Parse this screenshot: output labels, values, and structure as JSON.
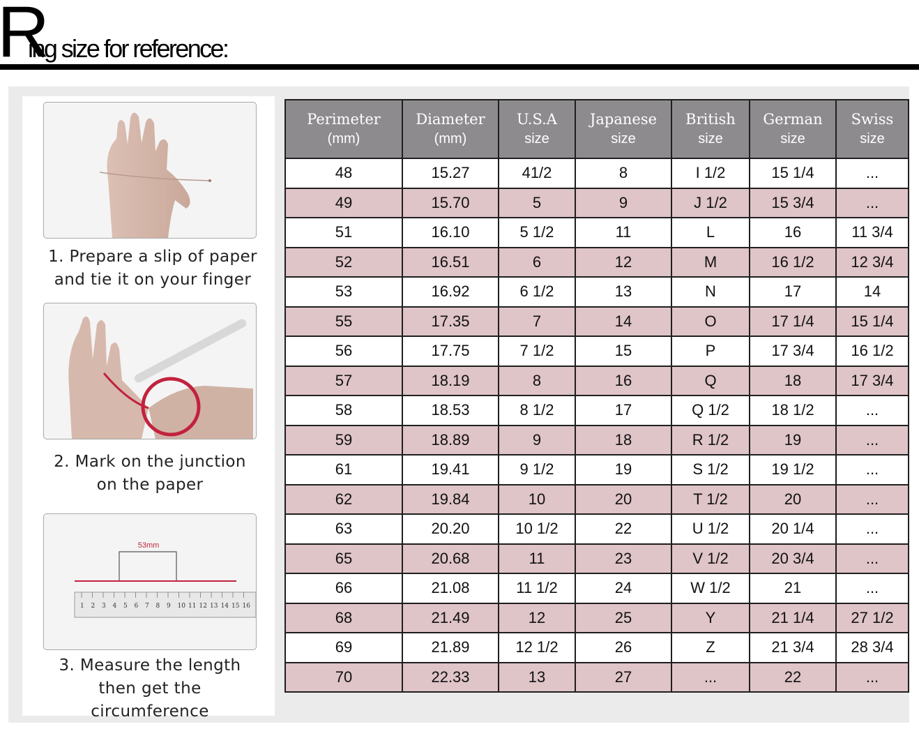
{
  "title": {
    "initial": "R",
    "rest": "ing size for reference:"
  },
  "steps": [
    {
      "text": "1. Prepare a slip of paper and tie it on your finger"
    },
    {
      "text": "2. Mark on the junction on the paper"
    },
    {
      "text": "3. Measure the length then get the circumference"
    }
  ],
  "ruler": {
    "measure_label": "53mm",
    "numbers": [
      "1",
      "2",
      "3",
      "4",
      "5",
      "6",
      "7",
      "8",
      "9",
      "10",
      "11",
      "12",
      "13",
      "14",
      "15",
      "16"
    ]
  },
  "colors": {
    "header_bg": "#8e8b8e",
    "pink_row": "#dfc4c8",
    "accent_red": "#c2223e"
  },
  "table": {
    "headers": [
      {
        "line1": "Perimeter",
        "line2": "(mm)"
      },
      {
        "line1": "Diameter",
        "line2": "(mm)"
      },
      {
        "line1": "U.S.A",
        "line2": "size"
      },
      {
        "line1": "Japanese",
        "line2": "size"
      },
      {
        "line1": "British",
        "line2": "size"
      },
      {
        "line1": "German",
        "line2": "size"
      },
      {
        "line1": "Swiss",
        "line2": "size"
      }
    ],
    "rows": [
      [
        "48",
        "15.27",
        "41/2",
        "8",
        "I 1/2",
        "15 1/4",
        "..."
      ],
      [
        "49",
        "15.70",
        "5",
        "9",
        "J 1/2",
        "15 3/4",
        "..."
      ],
      [
        "51",
        "16.10",
        "5 1/2",
        "11",
        "L",
        "16",
        "11 3/4"
      ],
      [
        "52",
        "16.51",
        "6",
        "12",
        "M",
        "16 1/2",
        "12 3/4"
      ],
      [
        "53",
        "16.92",
        "6 1/2",
        "13",
        "N",
        "17",
        "14"
      ],
      [
        "55",
        "17.35",
        "7",
        "14",
        "O",
        "17 1/4",
        "15 1/4"
      ],
      [
        "56",
        "17.75",
        "7 1/2",
        "15",
        "P",
        "17 3/4",
        "16 1/2"
      ],
      [
        "57",
        "18.19",
        "8",
        "16",
        "Q",
        "18",
        "17 3/4"
      ],
      [
        "58",
        "18.53",
        "8 1/2",
        "17",
        "Q  1/2",
        "18 1/2",
        "..."
      ],
      [
        "59",
        "18.89",
        "9",
        "18",
        "R 1/2",
        "19",
        "..."
      ],
      [
        "61",
        "19.41",
        "9 1/2",
        "19",
        "S 1/2",
        "19 1/2",
        "..."
      ],
      [
        "62",
        "19.84",
        "10",
        "20",
        "T 1/2",
        "20",
        "..."
      ],
      [
        "63",
        "20.20",
        "10 1/2",
        "22",
        "U 1/2",
        "20 1/4",
        "..."
      ],
      [
        "65",
        "20.68",
        "11",
        "23",
        "V 1/2",
        "20 3/4",
        "..."
      ],
      [
        "66",
        "21.08",
        "11 1/2",
        "24",
        "W 1/2",
        "21",
        "..."
      ],
      [
        "68",
        "21.49",
        "12",
        "25",
        "Y",
        "21 1/4",
        "27 1/2"
      ],
      [
        "69",
        "21.89",
        "12 1/2",
        "26",
        "Z",
        "21 3/4",
        "28 3/4"
      ],
      [
        "70",
        "22.33",
        "13",
        "27",
        "...",
        "22",
        "..."
      ]
    ]
  }
}
